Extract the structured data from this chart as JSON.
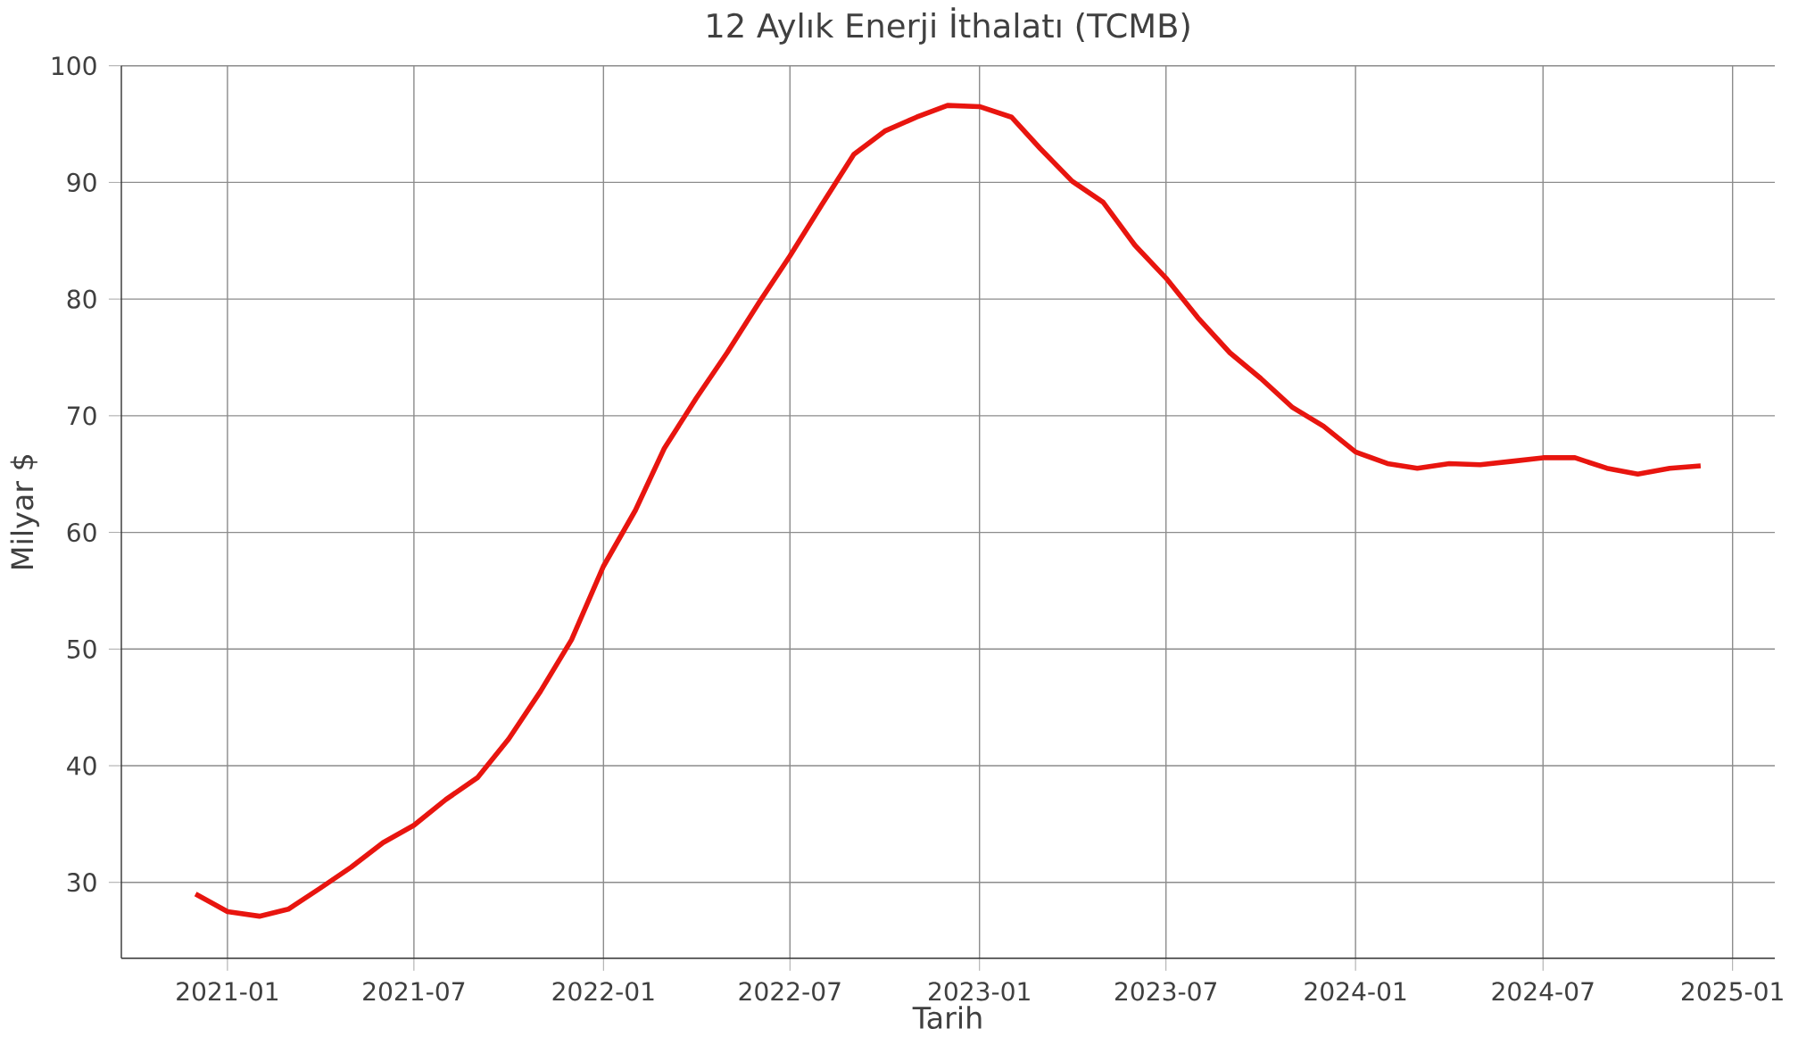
{
  "chart_data": {
    "type": "line",
    "title": "12 Aylık Enerji İthalatı (TCMB)",
    "xlabel": "Tarih",
    "ylabel": "Milyar $",
    "x": [
      "2020-12",
      "2021-01",
      "2021-02",
      "2021-03",
      "2021-04",
      "2021-05",
      "2021-06",
      "2021-07",
      "2021-08",
      "2021-09",
      "2021-10",
      "2021-11",
      "2021-12",
      "2022-01",
      "2022-02",
      "2022-03",
      "2022-04",
      "2022-05",
      "2022-06",
      "2022-07",
      "2022-08",
      "2022-09",
      "2022-10",
      "2022-11",
      "2022-12",
      "2023-01",
      "2023-02",
      "2023-03",
      "2023-04",
      "2023-05",
      "2023-06",
      "2023-07",
      "2023-08",
      "2023-09",
      "2023-10",
      "2023-11",
      "2023-12",
      "2024-01",
      "2024-02",
      "2024-03",
      "2024-04",
      "2024-05",
      "2024-06",
      "2024-07",
      "2024-08",
      "2024-09",
      "2024-10",
      "2024-11",
      "2024-12"
    ],
    "series": [
      {
        "color": "#e8150f",
        "values": [
          29.0,
          27.5,
          27.1,
          27.7,
          29.5,
          31.3,
          33.4,
          34.9,
          37.1,
          39.0,
          42.3,
          46.4,
          50.8,
          57.1,
          61.9,
          67.2,
          71.5,
          75.4,
          79.7,
          83.7,
          88.1,
          92.4,
          94.4,
          95.6,
          96.6,
          96.5,
          95.6,
          92.9,
          90.1,
          88.3,
          84.6,
          81.8,
          78.4,
          75.4,
          73.2,
          70.7,
          69.1,
          66.9,
          65.9,
          65.5,
          65.9,
          65.8,
          66.1,
          66.4,
          66.4,
          65.5,
          65.0,
          65.5,
          65.7
        ]
      }
    ],
    "xlim": [
      "2020-09-20",
      "2025-02-11"
    ],
    "ylim": [
      23.5,
      100
    ],
    "xticks": [
      "2021-01",
      "2021-07",
      "2022-01",
      "2022-07",
      "2023-01",
      "2023-07",
      "2024-01",
      "2024-07",
      "2025-01"
    ],
    "yticks": [
      30,
      40,
      50,
      60,
      70,
      80,
      90,
      100
    ],
    "grid": true,
    "marker": "none",
    "line_style": "solid"
  }
}
